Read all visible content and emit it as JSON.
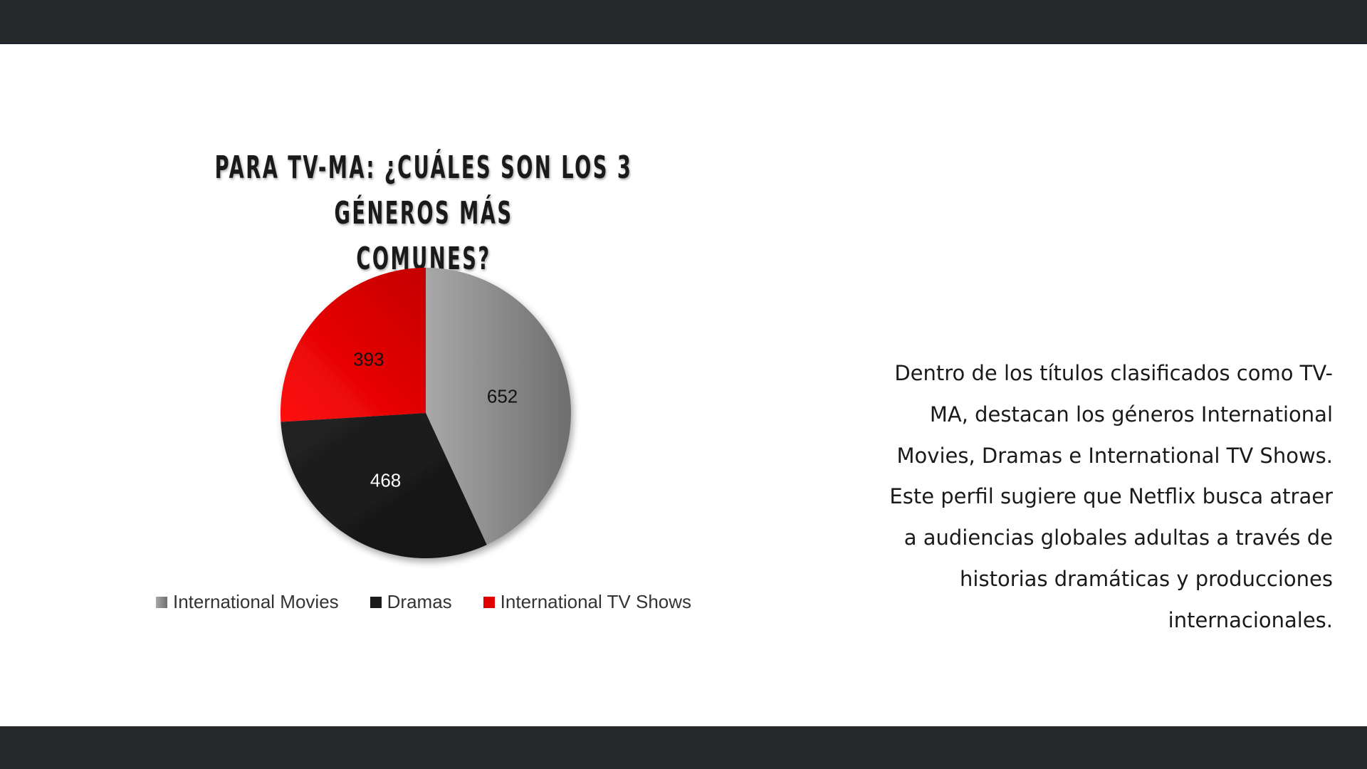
{
  "title_lines": [
    "PARA TV-MA: ¿CUÁLES SON LOS 3 GÉNEROS MÁS",
    "COMUNES?"
  ],
  "body_text": "Dentro de los títulos clasificados como TV-MA, destacan los géneros International Movies, Dramas e International TV Shows. Este perfil sugiere que Netflix busca atraer a audiencias globales adultas a través de historias dramáticas y producciones internacionales.",
  "colors": {
    "bars": "#28292b",
    "International Movies": "#8a8a8a",
    "Dramas": "#1b1b1b",
    "International TV Shows": "#e00000"
  },
  "chart_data": {
    "type": "pie",
    "categories": [
      "International Movies",
      "Dramas",
      "International TV Shows"
    ],
    "values": [
      652,
      468,
      393
    ],
    "data_labels": [
      "652",
      "468",
      "393"
    ],
    "legend_position": "bottom",
    "title": "PARA TV-MA: ¿CUÁLES SON LOS 3 GÉNEROS MÁS COMUNES?"
  }
}
